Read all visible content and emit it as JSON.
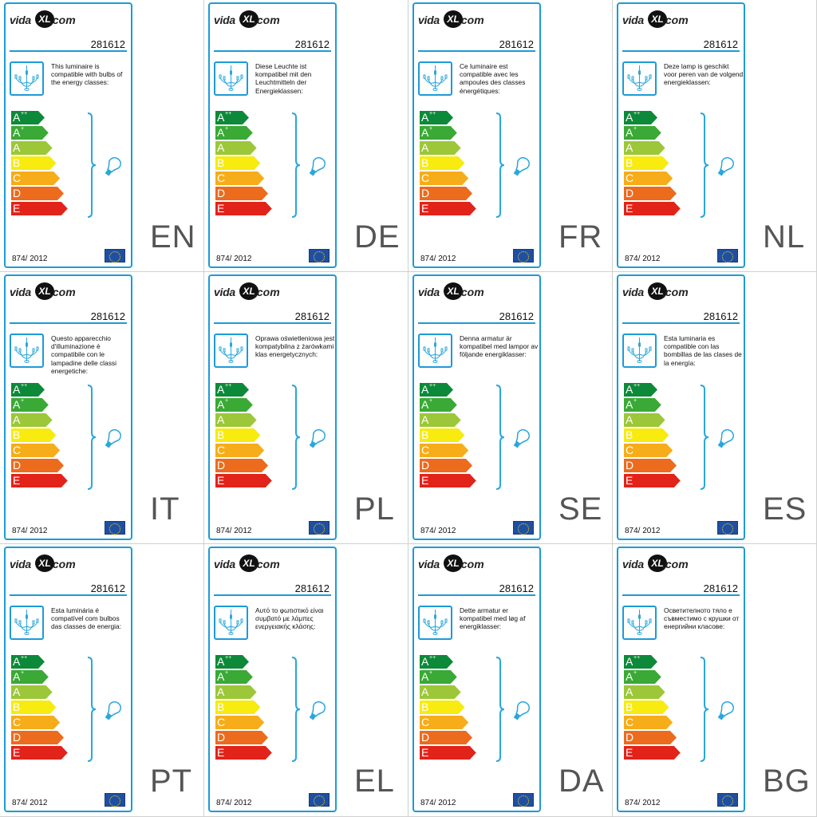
{
  "product_number": "281612",
  "regulation": "874/ 2012",
  "brand": {
    "part1": "vida",
    "badge": "XL",
    "part2": ".com"
  },
  "energy_classes": [
    {
      "letter": "A",
      "sup": "++",
      "color": "#0d8a39"
    },
    {
      "letter": "A",
      "sup": "+",
      "color": "#3aa935"
    },
    {
      "letter": "A",
      "sup": "",
      "color": "#9cc738"
    },
    {
      "letter": "B",
      "sup": "",
      "color": "#f7eb0f"
    },
    {
      "letter": "C",
      "sup": "",
      "color": "#f6ad19"
    },
    {
      "letter": "D",
      "sup": "",
      "color": "#ec6b1d"
    },
    {
      "letter": "E",
      "sup": "",
      "color": "#e2231a"
    }
  ],
  "accent_color": "#1d9bd7",
  "icons": [
    "chandelier-icon",
    "bulb-icon",
    "eu-flag-icon"
  ],
  "labels": [
    {
      "lang": "EN",
      "text": "This luminaire is compatible with bulbs of the energy classes:"
    },
    {
      "lang": "DE",
      "text": "Diese Leuchte ist kompatibel mit den Leuchtmitteln der Energieklassen:"
    },
    {
      "lang": "FR",
      "text": "Ce luminaire est compatible avec les ampoules des classes énergétiques:"
    },
    {
      "lang": "NL",
      "text": "Deze lamp is geschikt voor peren van de volgend energieklassen:"
    },
    {
      "lang": "IT",
      "text": "Questo apparecchio d'illuminazione è compatibile con le lampadine delle classi energetiche:"
    },
    {
      "lang": "PL",
      "text": "Oprawa oświetleniowa jest kompatybilna z żarówkami klas energetycznych:"
    },
    {
      "lang": "SE",
      "text": "Denna armatur är kompatibel med lampor av följande energiklasser:"
    },
    {
      "lang": "ES",
      "text": "Esta luminaria es compatible con las bombillas de las clases de la energía:"
    },
    {
      "lang": "PT",
      "text": "Esta luminária é compatível com bulbos das classes de energia:"
    },
    {
      "lang": "EL",
      "text": "Αυτό το φωτιστικό είναι συμβατό με λάμπες ενεργειακής κλάσης:"
    },
    {
      "lang": "DA",
      "text": "Dette armatur er kompatibel med løg af energiklasser:"
    },
    {
      "lang": "BG",
      "text": "Осветителното тяло е съвместимо с крушки от енергийни класове:"
    }
  ]
}
